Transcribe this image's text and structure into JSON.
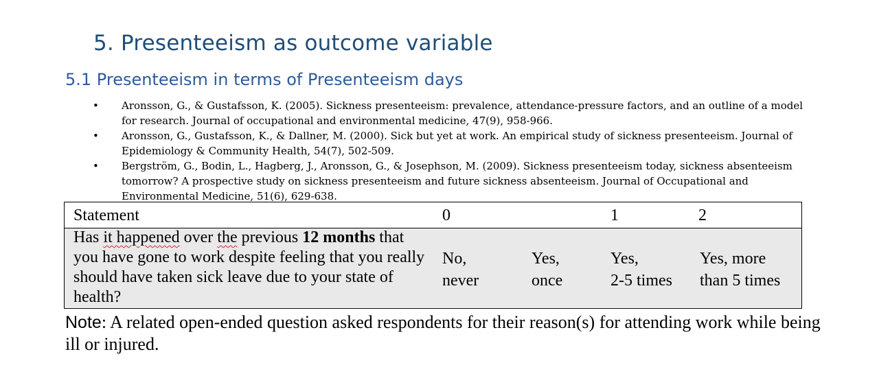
{
  "section_title": "5.  Presenteeism as outcome variable",
  "subsection_title": "5.1 Presenteeism in terms of Presenteeism days",
  "references": [
    {
      "bullet": "•",
      "text": "Aronsson, G., & Gustafsson, K. (2005). Sickness presenteeism: prevalence, attendance-pressure factors, and an outline of a model for research. Journal of occupational and environmental medicine, 47(9), 958-966."
    },
    {
      "bullet": "•",
      "text": "Aronsson, G., Gustafsson, K., & Dallner, M. (2000). Sick but yet at work. An empirical study of sickness presenteeism. Journal of Epidemiology & Community Health, 54(7), 502-509."
    },
    {
      "bullet": "•",
      "text": "Bergström, G., Bodin, L., Hagberg, J., Aronsson, G., & Josephson, M. (2009). Sickness presenteeism today, sickness absenteeism tomorrow? A prospective study on sickness presenteeism and future sickness absenteeism. Journal of Occupational and Environmental Medicine, 51(6), 629-638."
    }
  ],
  "survey_table": {
    "header": {
      "statement": "Statement",
      "col_0": "0",
      "col_1": "1",
      "col_2": "2"
    },
    "question": {
      "part1": "Has ",
      "part2": "it happened",
      "part3": " over ",
      "part4": "the",
      "part5": " previous ",
      "bold": "12 months",
      "part6": " that you have gone to work despite feeling that you really should have taken sick leave due to your state of health?"
    },
    "options": [
      {
        "line1": "No,",
        "line2": "never"
      },
      {
        "line1": "Yes,",
        "line2": "once"
      },
      {
        "line1": "Yes,",
        "line2": "2-5 times"
      },
      {
        "line1": "Yes, more",
        "line2": "than 5 times"
      }
    ]
  },
  "note": {
    "label": "Note",
    "text": ": A related open-ended question asked respondents for their reason(s) for attending work while being ill or injured."
  }
}
